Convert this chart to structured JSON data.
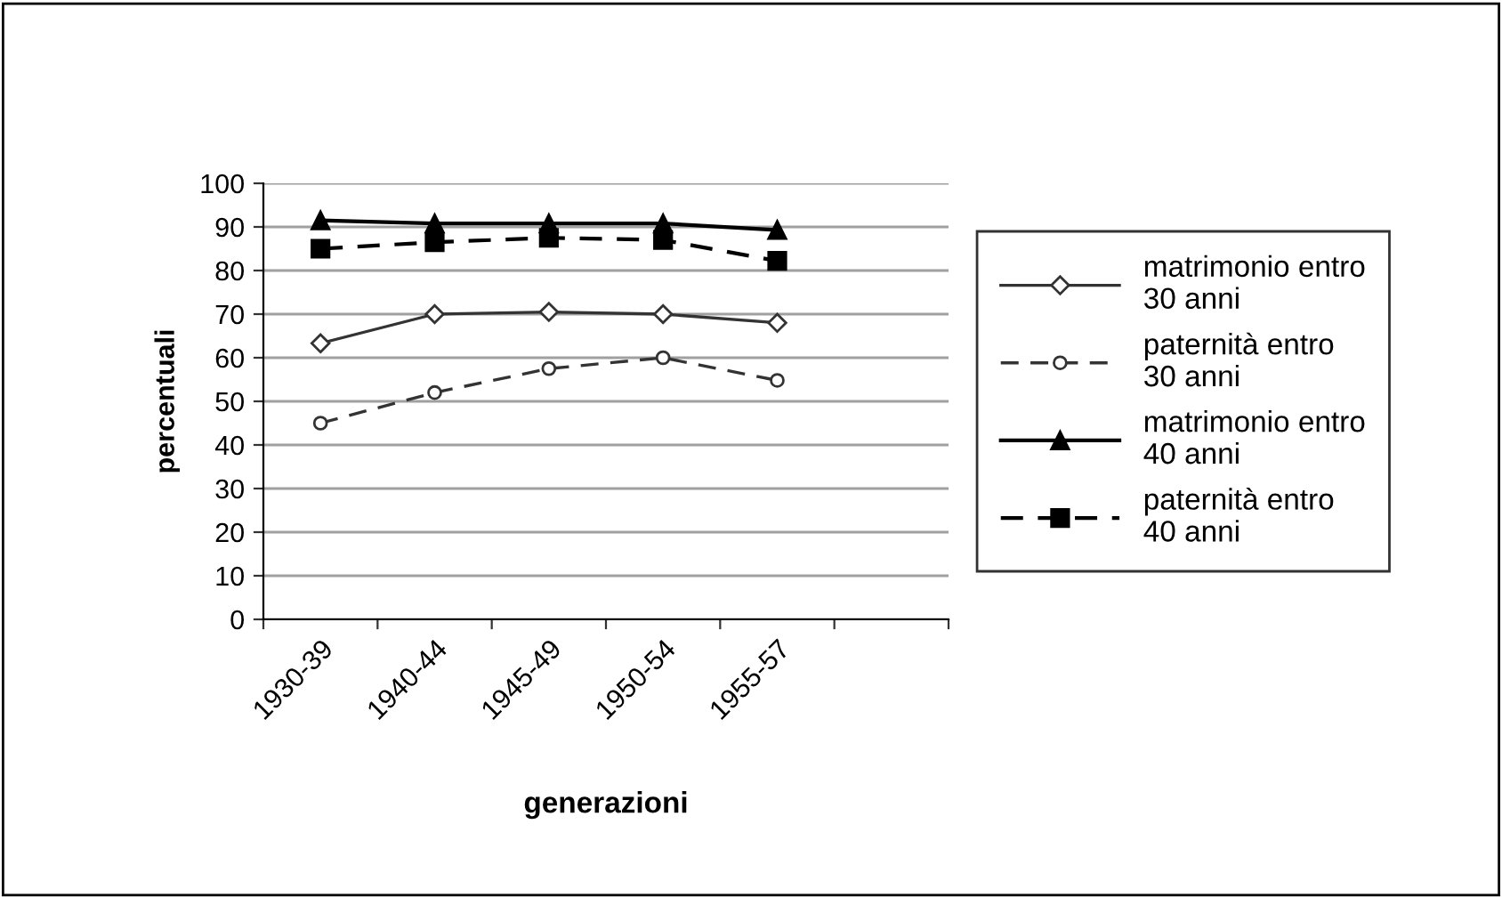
{
  "chart_data": {
    "type": "line",
    "xlabel": "generazioni",
    "ylabel": "percentuali",
    "categories": [
      "1930-39",
      "1940-44",
      "1945-49",
      "1950-54",
      "1955-57",
      null
    ],
    "ylim": [
      0,
      100
    ],
    "yticks": [
      0,
      10,
      20,
      30,
      40,
      50,
      60,
      70,
      80,
      90,
      100
    ],
    "grid": "y",
    "legend": "right",
    "series": [
      {
        "name": "matrimonio entro\n30 anni",
        "color": "#333333",
        "marker": "diamond",
        "line_style": "solid",
        "values": [
          63.3,
          70,
          70.5,
          70,
          68,
          null
        ]
      },
      {
        "name": "paternità entro\n30 anni",
        "color": "#333333",
        "marker": "circle",
        "line_style": "dashed",
        "values": [
          45,
          52,
          57.5,
          60,
          54.8,
          null
        ]
      },
      {
        "name": "matrimonio entro\n40 anni",
        "color": "#000000",
        "marker": "triangle",
        "line_style": "solid",
        "values": [
          91.5,
          90.8,
          90.8,
          90.8,
          89.3,
          null
        ]
      },
      {
        "name": "paternità entro\n40 anni",
        "color": "#000000",
        "marker": "square",
        "line_style": "dashed",
        "values": [
          85,
          86.5,
          87.5,
          87,
          82.2,
          null
        ]
      }
    ]
  }
}
